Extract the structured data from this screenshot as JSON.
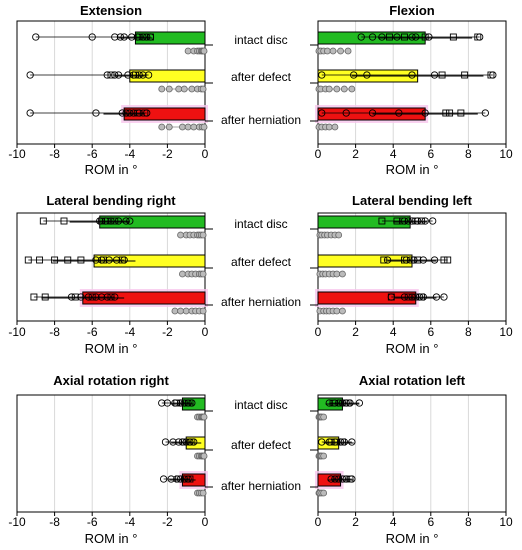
{
  "chart_data": {
    "type": "bar",
    "layout": "grid 3x2 of horizontal bar panels with overlaid data points",
    "categories": [
      "intact disc",
      "after defect",
      "after herniation"
    ],
    "category_colors": [
      "#22bb22",
      "#ffff22",
      "#ee1111"
    ],
    "xlabel": "ROM in °",
    "marker_legend": "circles / squares = individual specimens (black = primary ROM, grey = coupled motion)",
    "panels": [
      {
        "title": "Extension",
        "direction": "negative",
        "xlim": [
          -10,
          0
        ],
        "ticks": [
          "-10",
          "-8",
          "-6",
          "-4",
          "-2",
          "0"
        ],
        "series": [
          {
            "name": "intact disc",
            "value": -3.7,
            "error": 0.9,
            "points_circle": [
              -9.0,
              -6.0,
              -4.8,
              -4.5,
              -4.3,
              -3.9,
              -3.6,
              -3.3,
              -3.1,
              -2.9
            ],
            "points_square": [
              -3.5,
              -3.2,
              -2.9
            ],
            "points_coupled": [
              -0.9,
              -0.6,
              -0.4,
              -0.3,
              -0.2,
              -0.15,
              -0.1,
              -0.05
            ]
          },
          {
            "name": "after defect",
            "value": -4.0,
            "error": 0.8,
            "points_circle": [
              -9.3,
              -5.2,
              -4.8,
              -4.6,
              -4.1,
              -3.8,
              -3.5,
              -3.3,
              -3.0
            ],
            "points_square": [
              -5.0,
              -3.7
            ],
            "points_coupled": [
              -2.3,
              -1.9,
              -1.4,
              -1.1,
              -0.7,
              -0.4,
              -0.2,
              -0.1
            ]
          },
          {
            "name": "after herniation",
            "value": -4.3,
            "error": 1.1,
            "points_circle": [
              -9.3,
              -5.8,
              -4.4,
              -4.2,
              -4.0,
              -3.8,
              -3.5,
              -3.1
            ],
            "points_square": [
              -4.1,
              -3.6,
              -3.2
            ],
            "points_coupled": [
              -2.3,
              -1.9,
              -1.2,
              -0.9,
              -0.6,
              -0.3,
              -0.15,
              -0.05
            ]
          }
        ]
      },
      {
        "title": "Flexion",
        "direction": "positive",
        "xlim": [
          0,
          10
        ],
        "ticks": [
          "0",
          "2",
          "4",
          "6",
          "8",
          "10"
        ],
        "series": [
          {
            "name": "intact disc",
            "value": 5.7,
            "error": 2.5,
            "points_circle": [
              2.3,
              2.9,
              3.4,
              4.2,
              5.0,
              5.2,
              5.9,
              8.6
            ],
            "points_square": [
              3.8,
              4.6,
              5.7,
              7.2,
              8.5
            ],
            "points_coupled": [
              0.05,
              0.15,
              0.3,
              0.5,
              0.8,
              1.2,
              1.6
            ]
          },
          {
            "name": "after defect",
            "value": 5.3,
            "error": 3.5,
            "points_circle": [
              0.2,
              1.9,
              2.6,
              5.0,
              6.2,
              9.3
            ],
            "points_square": [
              6.6,
              7.8,
              9.2
            ],
            "points_coupled": [
              0.05,
              0.15,
              0.4,
              0.6,
              1.0,
              1.4,
              1.8
            ]
          },
          {
            "name": "after herniation",
            "value": 5.7,
            "error": 2.8,
            "points_circle": [
              0.2,
              1.5,
              2.9,
              4.3,
              5.7,
              8.9
            ],
            "points_square": [
              6.8,
              7.0,
              7.6
            ],
            "points_coupled": [
              0.05,
              0.2,
              0.4,
              0.6,
              0.9
            ]
          }
        ]
      },
      {
        "title": "Lateral bending right",
        "direction": "negative",
        "xlim": [
          -10,
          0
        ],
        "ticks": [
          "-10",
          "-8",
          "-6",
          "-4",
          "-2",
          "0"
        ],
        "series": [
          {
            "name": "intact disc",
            "value": -5.6,
            "error": 1.6,
            "points_circle": [
              -5.6,
              -5.3,
              -5.0,
              -4.6,
              -4.2,
              -4.0
            ],
            "points_square": [
              -8.6,
              -7.5,
              -5.5,
              -5.2,
              -4.8
            ],
            "points_coupled": [
              -1.3,
              -1.0,
              -0.8,
              -0.6,
              -0.4,
              -0.3,
              -0.2,
              -0.1
            ]
          },
          {
            "name": "after defect",
            "value": -5.9,
            "error": 2.2,
            "points_circle": [
              -5.8,
              -5.5,
              -5.1,
              -4.7,
              -4.3
            ],
            "points_square": [
              -9.4,
              -8.8,
              -8.0,
              -7.3,
              -6.6,
              -5.4,
              -4.4
            ],
            "points_coupled": [
              -1.2,
              -0.9,
              -0.7,
              -0.5,
              -0.3,
              -0.2,
              -0.1
            ]
          },
          {
            "name": "after herniation",
            "value": -6.5,
            "error": 2.2,
            "points_circle": [
              -7.1,
              -6.6,
              -6.2,
              -5.8,
              -5.5,
              -5.2,
              -4.8
            ],
            "points_square": [
              -9.1,
              -8.5,
              -6.9,
              -6.0,
              -5.0
            ],
            "points_coupled": [
              -1.6,
              -1.3,
              -1.0,
              -0.7,
              -0.5,
              -0.3,
              -0.1
            ]
          }
        ]
      },
      {
        "title": "Lateral bending left",
        "direction": "positive",
        "xlim": [
          0,
          10
        ],
        "ticks": [
          "0",
          "2",
          "4",
          "6",
          "8",
          "10"
        ],
        "series": [
          {
            "name": "intact disc",
            "value": 4.9,
            "error": 0.9,
            "points_circle": [
              4.6,
              4.8,
              5.0,
              5.3,
              5.7,
              6.1
            ],
            "points_square": [
              3.4,
              4.2,
              4.5,
              5.2,
              5.5
            ],
            "points_coupled": [
              0.1,
              0.2,
              0.35,
              0.5,
              0.7,
              0.9,
              1.1
            ]
          },
          {
            "name": "after defect",
            "value": 5.0,
            "error": 1.3,
            "points_circle": [
              3.7,
              4.7,
              5.1,
              5.6,
              6.2
            ],
            "points_square": [
              3.5,
              4.6,
              5.0,
              5.3,
              6.7,
              6.9
            ],
            "points_coupled": [
              0.1,
              0.25,
              0.4,
              0.6,
              0.8,
              1.0,
              1.3
            ]
          },
          {
            "name": "after herniation",
            "value": 5.2,
            "error": 1.1,
            "points_circle": [
              3.9,
              4.6,
              5.0,
              5.4,
              5.6,
              6.3,
              6.7
            ],
            "points_square": [
              3.9,
              4.8,
              5.2,
              5.5
            ],
            "points_coupled": [
              0.1,
              0.3,
              0.45,
              0.6,
              0.8,
              1.0,
              1.3
            ]
          }
        ]
      },
      {
        "title": "Axial rotation right",
        "direction": "negative",
        "xlim": [
          -10,
          0
        ],
        "ticks": [
          "-10",
          "-8",
          "-6",
          "-4",
          "-2",
          "0"
        ],
        "series": [
          {
            "name": "intact disc",
            "value": -1.2,
            "error": 0.6,
            "points_circle": [
              -2.3,
              -2.0,
              -1.6,
              -1.3,
              -1.1,
              -0.9,
              -0.7
            ],
            "points_square": [
              -1.5,
              -1.2,
              -1.0,
              -0.8
            ],
            "points_coupled": [
              -0.4,
              -0.3,
              -0.2,
              -0.15,
              -0.1,
              -0.05
            ]
          },
          {
            "name": "after defect",
            "value": -1.0,
            "error": 0.8,
            "points_circle": [
              -2.1,
              -1.7,
              -1.4,
              -1.2,
              -1.0,
              -0.8,
              -0.6
            ],
            "points_square": [
              -1.1,
              -0.9,
              -0.7
            ],
            "points_coupled": [
              -0.4,
              -0.3,
              -0.2,
              -0.15,
              -0.1,
              -0.05
            ]
          },
          {
            "name": "after herniation",
            "value": -1.2,
            "error": 0.7,
            "points_circle": [
              -2.2,
              -1.8,
              -1.5,
              -1.3,
              -1.1,
              -0.9
            ],
            "points_square": [
              -1.4,
              -1.0,
              -0.8
            ],
            "points_coupled": [
              -0.4,
              -0.3,
              -0.2,
              -0.1
            ]
          }
        ]
      },
      {
        "title": "Axial rotation left",
        "direction": "positive",
        "xlim": [
          0,
          10
        ],
        "ticks": [
          "0",
          "2",
          "4",
          "6",
          "8",
          "10"
        ],
        "series": [
          {
            "name": "intact disc",
            "value": 1.3,
            "error": 0.9,
            "points_circle": [
              0.6,
              0.9,
              1.1,
              1.3,
              1.5,
              1.7,
              2.2
            ],
            "points_square": [
              0.8,
              1.2,
              1.4,
              1.6
            ],
            "points_coupled": [
              0.05,
              0.1,
              0.15,
              0.2,
              0.3
            ]
          },
          {
            "name": "after defect",
            "value": 1.1,
            "error": 0.8,
            "points_circle": [
              0.2,
              0.6,
              0.9,
              1.2,
              1.4,
              1.8
            ],
            "points_square": [
              0.7,
              1.0,
              1.3
            ],
            "points_coupled": [
              0.05,
              0.1,
              0.15,
              0.2,
              0.3
            ]
          },
          {
            "name": "after herniation",
            "value": 1.2,
            "error": 0.7,
            "points_circle": [
              0.7,
              0.9,
              1.1,
              1.3,
              1.5,
              1.8
            ],
            "points_square": [
              1.0,
              1.4,
              1.7
            ],
            "points_coupled": [
              0.05,
              0.1,
              0.2,
              0.3
            ]
          }
        ]
      }
    ]
  }
}
